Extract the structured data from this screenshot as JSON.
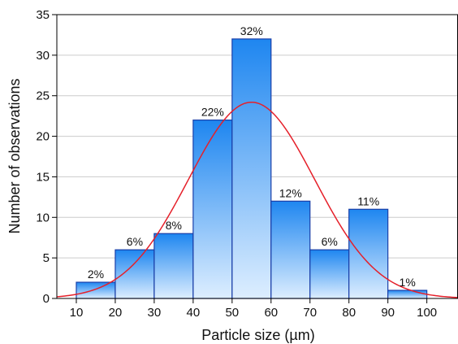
{
  "chart_data": {
    "type": "bar",
    "title": "",
    "xlabel": "Particle size (µm)",
    "ylabel": "Number of observations",
    "bins": [
      {
        "from": 10,
        "to": 20,
        "value": 2,
        "label": "2%"
      },
      {
        "from": 20,
        "to": 30,
        "value": 6,
        "label": "6%"
      },
      {
        "from": 30,
        "to": 40,
        "value": 8,
        "label": "8%"
      },
      {
        "from": 40,
        "to": 50,
        "value": 22,
        "label": "22%"
      },
      {
        "from": 50,
        "to": 60,
        "value": 32,
        "label": "32%"
      },
      {
        "from": 60,
        "to": 70,
        "value": 12,
        "label": "12%"
      },
      {
        "from": 70,
        "to": 80,
        "value": 6,
        "label": "6%"
      },
      {
        "from": 80,
        "to": 90,
        "value": 11,
        "label": "11%"
      },
      {
        "from": 90,
        "to": 100,
        "value": 1,
        "label": "1%"
      }
    ],
    "fit_curve": {
      "type": "normal",
      "peak_x": 55,
      "peak_y": 24.2,
      "stdev": 16.2
    },
    "xticks": [
      "10",
      "20",
      "30",
      "40",
      "50",
      "60",
      "70",
      "80",
      "90",
      "100"
    ],
    "yticks": [
      "0",
      "5",
      "10",
      "15",
      "20",
      "25",
      "30",
      "35"
    ],
    "xlim": [
      5,
      108
    ],
    "ylim": [
      0,
      35
    ],
    "grid": true,
    "colors": {
      "bar_top": "#1e86f0",
      "bar_bottom": "#ddeeff",
      "bar_stroke": "#1a3fa8",
      "curve": "#e5202a",
      "grid": "#cccccc"
    }
  }
}
